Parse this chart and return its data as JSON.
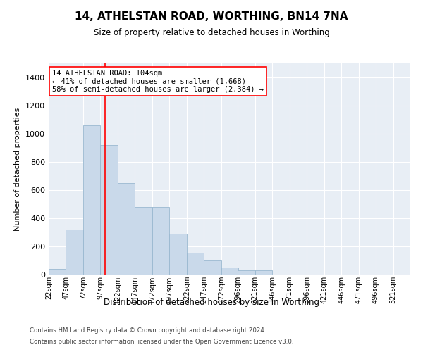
{
  "title": "14, ATHELSTAN ROAD, WORTHING, BN14 7NA",
  "subtitle": "Size of property relative to detached houses in Worthing",
  "xlabel": "Distribution of detached houses by size in Worthing",
  "ylabel": "Number of detached properties",
  "footer_line1": "Contains HM Land Registry data © Crown copyright and database right 2024.",
  "footer_line2": "Contains public sector information licensed under the Open Government Licence v3.0.",
  "bar_color": "#c9d9ea",
  "bar_edge_color": "#9ab8d0",
  "background_color": "#e8eef5",
  "grid_color": "#ffffff",
  "vline_color": "red",
  "annotation_title": "14 ATHELSTAN ROAD: 104sqm",
  "annotation_line1": "← 41% of detached houses are smaller (1,668)",
  "annotation_line2": "58% of semi-detached houses are larger (2,384) →",
  "ylim": [
    0,
    1500
  ],
  "yticks": [
    0,
    200,
    400,
    600,
    800,
    1000,
    1200,
    1400
  ],
  "bin_labels": [
    "22sqm",
    "47sqm",
    "72sqm",
    "97sqm",
    "122sqm",
    "147sqm",
    "172sqm",
    "197sqm",
    "222sqm",
    "247sqm",
    "272sqm",
    "296sqm",
    "321sqm",
    "346sqm",
    "371sqm",
    "396sqm",
    "421sqm",
    "446sqm",
    "471sqm",
    "496sqm",
    "521sqm"
  ],
  "bin_starts": [
    22,
    47,
    72,
    97,
    122,
    147,
    172,
    197,
    222,
    247,
    272,
    296,
    321,
    346,
    371,
    396,
    421,
    446,
    471,
    496,
    521
  ],
  "bin_width": 25,
  "bar_heights": [
    40,
    320,
    1060,
    920,
    650,
    480,
    480,
    290,
    155,
    100,
    50,
    30,
    30,
    0,
    0,
    0,
    0,
    0,
    0,
    0,
    0
  ],
  "vline_x": 104
}
